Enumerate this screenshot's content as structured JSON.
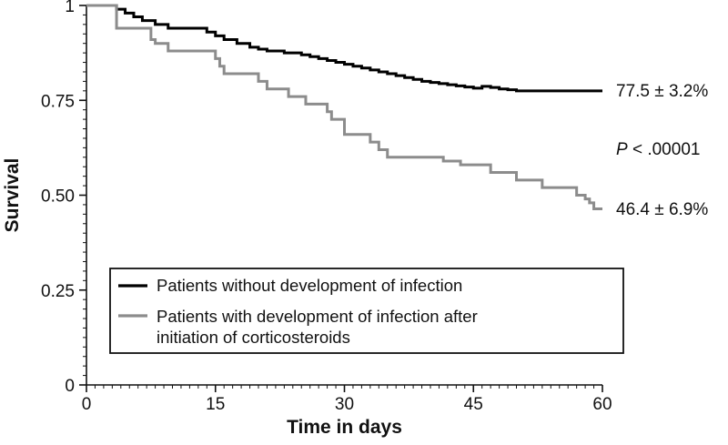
{
  "chart_data": {
    "type": "line",
    "xlabel": "Time in days",
    "ylabel": "Survival",
    "xlim": [
      0,
      60
    ],
    "ylim": [
      0,
      1
    ],
    "xticks": [
      0,
      15,
      30,
      45,
      60
    ],
    "yticks": [
      {
        "value": 0,
        "label": "0"
      },
      {
        "value": 0.25,
        "label": "0.25"
      },
      {
        "value": 0.5,
        "label": "0.50"
      },
      {
        "value": 0.75,
        "label": "0.75"
      },
      {
        "value": 1,
        "label": "1"
      }
    ],
    "grid": false,
    "legend_position": "bottom-left",
    "series": [
      {
        "name": "Patients without development of infection",
        "color": "#000000",
        "step": true,
        "x": [
          0,
          3.5,
          4.5,
          5.5,
          6.5,
          8,
          9.5,
          14,
          15,
          16,
          17.5,
          19,
          20,
          21,
          23,
          25,
          26,
          27,
          28,
          29,
          30,
          31,
          32,
          33,
          34,
          35,
          36,
          37,
          38,
          39,
          40,
          41,
          42,
          43,
          44,
          45,
          46,
          47,
          48,
          49,
          50,
          52,
          60
        ],
        "y": [
          1.0,
          0.99,
          0.98,
          0.97,
          0.96,
          0.95,
          0.94,
          0.93,
          0.92,
          0.91,
          0.9,
          0.89,
          0.885,
          0.88,
          0.875,
          0.87,
          0.865,
          0.86,
          0.855,
          0.85,
          0.845,
          0.84,
          0.835,
          0.83,
          0.825,
          0.82,
          0.815,
          0.81,
          0.805,
          0.8,
          0.797,
          0.794,
          0.791,
          0.788,
          0.785,
          0.782,
          0.787,
          0.784,
          0.78,
          0.778,
          0.775,
          0.775,
          0.775
        ]
      },
      {
        "name": "Patients with development of infection after initiation of corticosteroids",
        "color": "#8c8c8c",
        "step": true,
        "x": [
          0,
          3.5,
          7.5,
          8,
          9.5,
          15,
          15.5,
          16,
          20,
          21,
          23.5,
          25.5,
          28,
          28.5,
          30,
          33,
          34,
          35,
          36,
          41,
          41.5,
          43.5,
          47,
          48,
          50,
          53,
          56,
          57,
          57.5,
          58,
          58.5,
          59,
          60
        ],
        "y": [
          1.0,
          0.94,
          0.91,
          0.9,
          0.88,
          0.86,
          0.84,
          0.82,
          0.8,
          0.78,
          0.76,
          0.74,
          0.72,
          0.7,
          0.66,
          0.64,
          0.62,
          0.6,
          0.6,
          0.6,
          0.59,
          0.58,
          0.56,
          0.56,
          0.54,
          0.52,
          0.52,
          0.5,
          0.5,
          0.49,
          0.48,
          0.464,
          0.464
        ]
      }
    ],
    "annotations": [
      {
        "text": "77.5 ± 3.2%"
      },
      {
        "text_italic": "P",
        "text": " < .00001"
      },
      {
        "text": "46.4 ± 6.9%"
      }
    ],
    "legend": [
      {
        "line1": "Patients without development of infection",
        "line2": "",
        "color": "#000000"
      },
      {
        "line1": "Patients with development of infection after",
        "line2": "initiation of corticosteroids",
        "color": "#8c8c8c"
      }
    ]
  }
}
